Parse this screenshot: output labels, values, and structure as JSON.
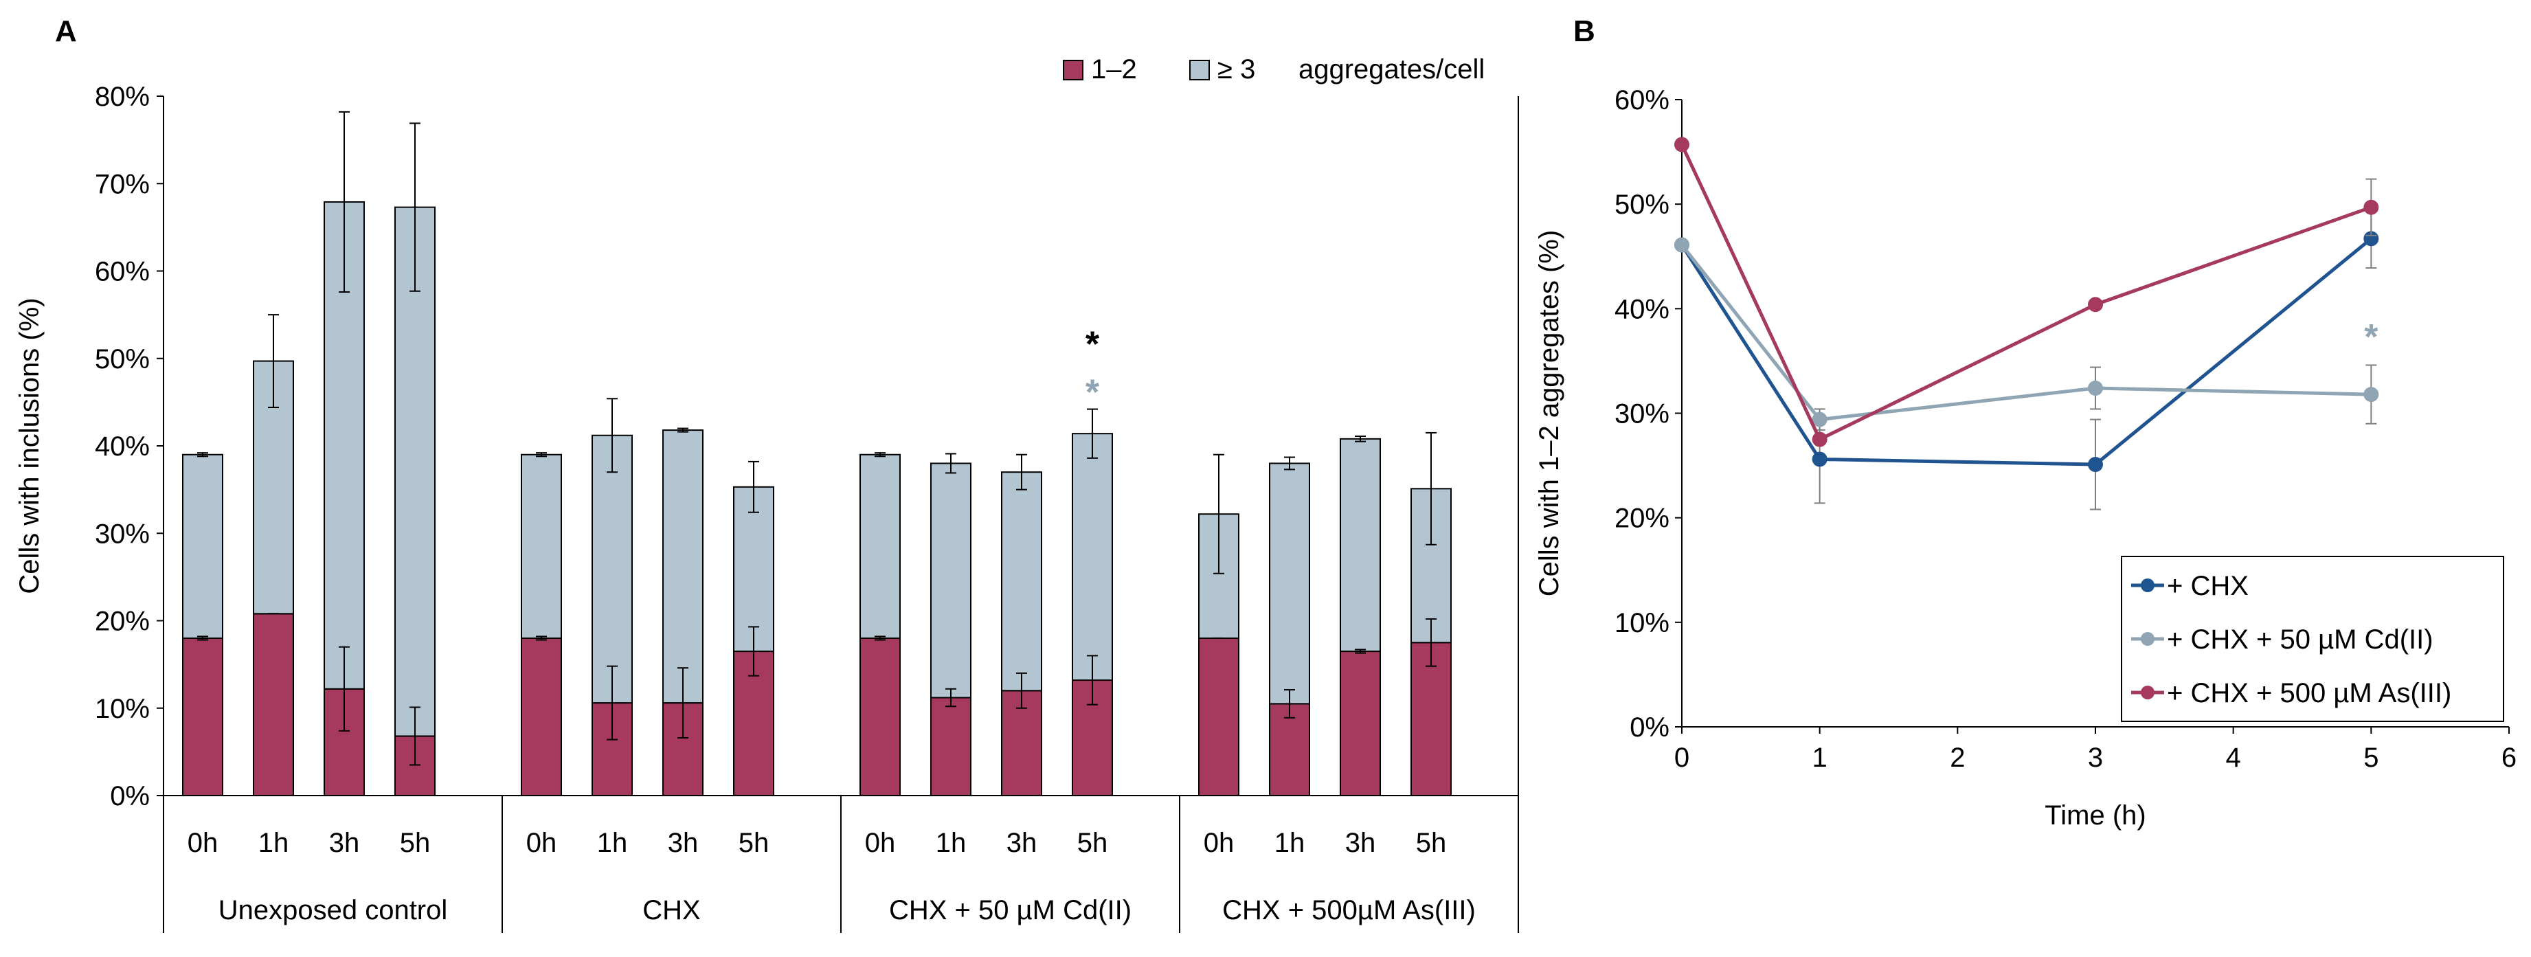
{
  "panels": {
    "a_label": "A",
    "b_label": "B"
  },
  "chart_data": [
    {
      "type": "bar",
      "stacked": true,
      "ylabel": "Cells with inclusions (%)",
      "ylim": [
        0,
        80
      ],
      "yticks": [
        "0%",
        "10%",
        "20%",
        "30%",
        "40%",
        "50%",
        "60%",
        "70%",
        "80%"
      ],
      "legend": {
        "placement": "top-right",
        "entries": [
          "1–2",
          "≥ 3"
        ],
        "suffix": "aggregates/cell"
      },
      "groups": [
        {
          "name": "Unexposed control",
          "categories": [
            "0h",
            "1h",
            "3h",
            "5h"
          ]
        },
        {
          "name": "CHX",
          "categories": [
            "0h",
            "1h",
            "3h",
            "5h"
          ]
        },
        {
          "name": "CHX + 50 µM Cd(II)",
          "categories": [
            "0h",
            "1h",
            "3h",
            "5h"
          ]
        },
        {
          "name": "CHX + 500µM As(III)",
          "categories": [
            "0h",
            "1h",
            "3h",
            "5h"
          ]
        }
      ],
      "series": [
        {
          "name": "1–2",
          "color": "#a63a5e",
          "values": [
            18,
            20.8,
            12.2,
            6.8,
            18,
            10.6,
            10.6,
            16.5,
            18,
            11.2,
            12,
            13.2,
            18,
            10.5,
            16.5,
            17.5
          ],
          "errors": [
            0.2,
            0,
            4.8,
            3.3,
            0.2,
            4.2,
            4,
            2.8,
            0.2,
            1,
            2,
            2.8,
            0,
            1.6,
            0.2,
            2.7
          ]
        },
        {
          "name": "≥ 3",
          "color": "#b3c5d1",
          "values": [
            21,
            28.9,
            55.7,
            60.5,
            21,
            30.6,
            31.2,
            18.8,
            21,
            26.8,
            25,
            28.2,
            14.2,
            27.5,
            24.3,
            17.6
          ],
          "errors": [
            0.2,
            5.3,
            10.3,
            9.6,
            0.2,
            4.2,
            0.2,
            2.9,
            0.2,
            1.1,
            2,
            2.8,
            6.8,
            0.7,
            0.3,
            6.4
          ]
        }
      ],
      "annotations": [
        {
          "text": "*",
          "group": 2,
          "bar": 3,
          "color": "#000000",
          "y": 52
        },
        {
          "text": "*",
          "group": 2,
          "bar": 3,
          "color": "#8fa5b4",
          "y": 46.5
        }
      ]
    },
    {
      "type": "line",
      "xlabel": "Time (h)",
      "ylabel": "Cells with 1–2 aggregates (%)",
      "xlim": [
        0,
        6
      ],
      "ylim": [
        0,
        60
      ],
      "xticks": [
        "0",
        "1",
        "2",
        "3",
        "4",
        "5",
        "6"
      ],
      "yticks": [
        "0%",
        "10%",
        "20%",
        "30%",
        "40%",
        "50%",
        "60%"
      ],
      "legend": {
        "placement": "bottom-right"
      },
      "x": [
        0,
        1,
        3,
        5
      ],
      "series": [
        {
          "name": "+ CHX",
          "color": "#1f5490",
          "values": [
            46.1,
            25.6,
            25.1,
            46.7
          ],
          "errors": [
            0,
            4.2,
            4.3,
            2.8
          ]
        },
        {
          "name": "+ CHX + 50 µM Cd(II)",
          "color": "#8fa5b4",
          "values": [
            46.1,
            29.4,
            32.4,
            31.8
          ],
          "errors": [
            0,
            1,
            2,
            2.8
          ]
        },
        {
          "name": "+ CHX + 500 µM As(III)",
          "color": "#a63a5e",
          "values": [
            55.7,
            27.5,
            40.4,
            49.7
          ],
          "errors": [
            0,
            0,
            0,
            2.7
          ]
        }
      ],
      "annotations": [
        {
          "text": "*",
          "x": 5,
          "y": 37.6,
          "color": "#8fa5b4"
        }
      ]
    }
  ]
}
